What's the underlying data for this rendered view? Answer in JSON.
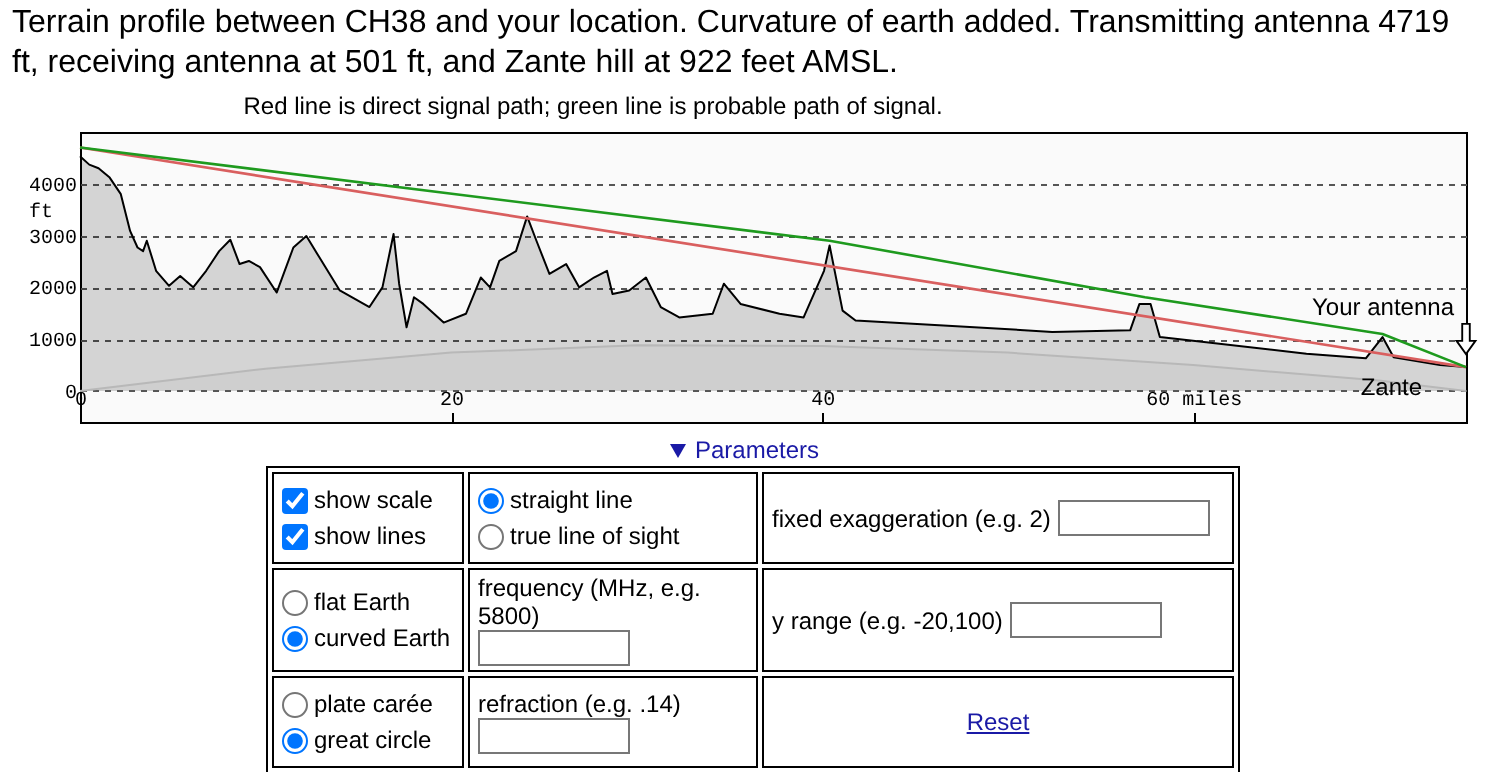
{
  "chart_data": [
    {
      "type": "line",
      "title": "Terrain profile between CH38 and your location.  Curvature of earth added. Transmitting antenna 4719 ft, receiving antenna at 501 ft, and Zante hill at 922 feet AMSL.",
      "subtitle": "Red line is direct signal path; green line is probable path of signal.",
      "ylabel": "ft",
      "series": [
        {
          "type": "area",
          "color": "#000000",
          "x": [
            0,
            0.5,
            1.0,
            1.6,
            2.2,
            2.7,
            3.1,
            3.4,
            3.6,
            4.1,
            4.8,
            5.4,
            6.1,
            6.8,
            7.5,
            8.1,
            8.6,
            9.1,
            9.7,
            10.6,
            11.5,
            12.2,
            12.9,
            14.0,
            15.6,
            16.3,
            16.9,
            17.2,
            17.6,
            18.0,
            18.5,
            19.6,
            20.8,
            21.6,
            22.1,
            22.6,
            23.5,
            24.1,
            24.6,
            25.3,
            26.2,
            26.9,
            27.7,
            28.4,
            28.7,
            29.6,
            30.5,
            31.3,
            32.3,
            34.1,
            34.7,
            35.6,
            37.7,
            39.0,
            40.1,
            40.4,
            41.1,
            41.8,
            46.3,
            52.4,
            56.6,
            57.1,
            57.7,
            58.2,
            60.7,
            66.1,
            69.3,
            70.2,
            70.8,
            73.3,
            74.7
          ],
          "values": [
            4530,
            4370,
            4300,
            4120,
            3800,
            3090,
            2770,
            2700,
            2900,
            2320,
            2030,
            2220,
            2000,
            2320,
            2700,
            2920,
            2450,
            2510,
            2390,
            1900,
            2770,
            2990,
            2580,
            1940,
            1620,
            2000,
            3030,
            2070,
            1230,
            1810,
            1680,
            1320,
            1490,
            2190,
            2000,
            2510,
            2700,
            3370,
            2900,
            2260,
            2450,
            2000,
            2190,
            2320,
            1870,
            1940,
            2190,
            1620,
            1420,
            1490,
            2070,
            1680,
            1490,
            1420,
            2320,
            2810,
            1550,
            1360,
            1270,
            1140,
            1170,
            1680,
            1680,
            1040,
            940,
            720,
            630,
            1040,
            650,
            500,
            460
          ]
        },
        {
          "type": "area",
          "color": "#b8b8b8",
          "x": [
            0,
            10,
            20,
            30,
            40,
            50,
            60,
            70,
            74.7
          ],
          "values": [
            0,
            430,
            740,
            880,
            870,
            740,
            500,
            200,
            0
          ]
        },
        {
          "type": "line",
          "color": "#d95f5f",
          "x": [
            0,
            74.7
          ],
          "values": [
            4700,
            460
          ]
        },
        {
          "type": "line",
          "color": "#1e9a1e",
          "x": [
            0,
            40.4,
            57.4,
            70.2,
            74.7
          ],
          "values": [
            4700,
            2900,
            1810,
            1100,
            460
          ]
        }
      ],
      "xlim": [
        0,
        74.7
      ],
      "xticks": [
        0,
        20,
        40,
        {
          "value": 60,
          "label": "60 miles"
        }
      ],
      "ylim": [
        -600,
        5000
      ],
      "yticks": [
        0,
        1000,
        2000,
        3000,
        4000
      ],
      "grid": "y",
      "annotations": [
        "Your antenna",
        "Zante"
      ]
    },
    {
      "type": "other",
      "annotations": [
        "Parameters",
        "show scale",
        "show lines",
        "straight line",
        "true line of sight",
        "fixed exaggeration (e.g. 2)",
        "flat Earth",
        "curved Earth",
        "frequency (MHz, e.g. 5800)",
        "y range (e.g. -20,100)",
        "plate carée",
        "great circle",
        "refraction (e.g. .14)",
        "Reset"
      ]
    }
  ]
}
